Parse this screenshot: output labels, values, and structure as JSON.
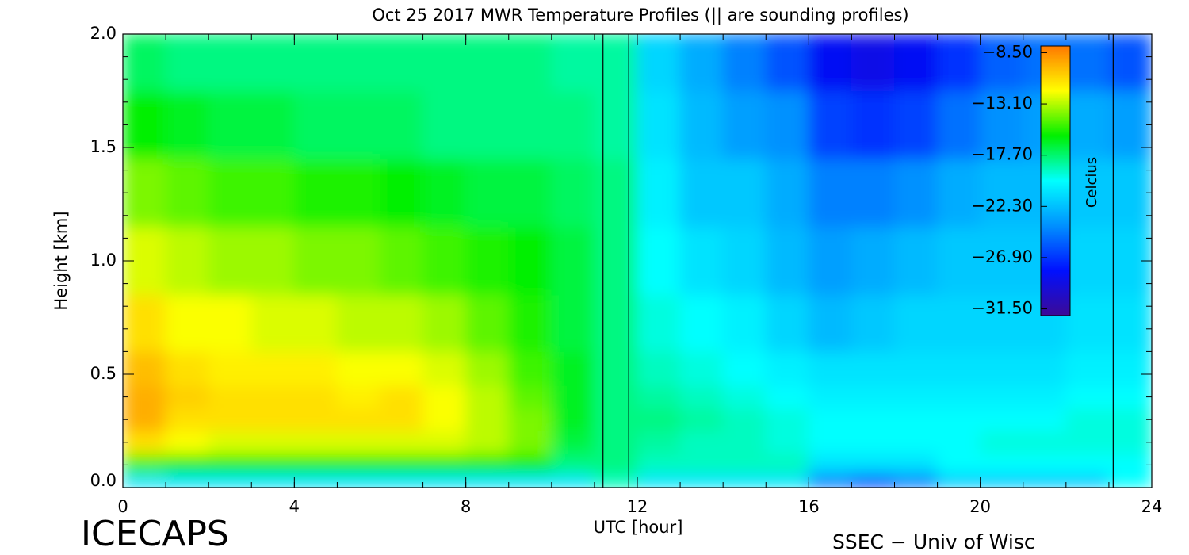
{
  "chart_data": {
    "type": "heatmap",
    "title": "Oct 25 2017 MWR Temperature Profiles (|| are sounding profiles)",
    "x_label": "UTC [hour]",
    "y_label": "Height [km]",
    "colorbar_label": "Celcius",
    "footer_left": "ICECAPS",
    "footer_right": "SSEC − Univ of Wisc",
    "xlim": [
      0,
      24
    ],
    "xticks": [
      0,
      4,
      8,
      12,
      16,
      20,
      24
    ],
    "xminor": 1,
    "ylim": [
      0,
      2
    ],
    "yticks": [
      {
        "value": 0,
        "label": "0.0"
      },
      {
        "value": 0.5,
        "label": "0.5"
      },
      {
        "value": 1,
        "label": "1.0"
      },
      {
        "value": 1.5,
        "label": "1.5"
      },
      {
        "value": 2,
        "label": "2.0"
      }
    ],
    "yminor": 0.1,
    "zlim": [
      -32.1,
      -7.9
    ],
    "zticks": [
      {
        "value": -8.5,
        "label": "−8.50"
      },
      {
        "value": -13.1,
        "label": "−13.10"
      },
      {
        "value": -17.7,
        "label": "−17.70"
      },
      {
        "value": -22.3,
        "label": "−22.30"
      },
      {
        "value": -26.9,
        "label": "−26.90"
      },
      {
        "value": -31.5,
        "label": "−31.50"
      }
    ],
    "colormap": [
      "#3c0a96",
      "#0010ff",
      "#0090ff",
      "#00ffff",
      "#00f000",
      "#ffff00",
      "#ff7800"
    ],
    "sounding_times": [
      11.2,
      11.8,
      23.1
    ],
    "x": [
      0.5,
      1.5,
      2.5,
      3.5,
      4.5,
      5.5,
      6.5,
      7.5,
      8.5,
      9.5,
      10.5,
      11.5,
      12.5,
      13.5,
      14.5,
      15.5,
      16.5,
      17.5,
      18.5,
      19.5,
      20.5,
      21.5,
      22.5,
      23.5
    ],
    "y": [
      0.02,
      0.1,
      0.2,
      0.3,
      0.4,
      0.5,
      0.7,
      1.0,
      1.3,
      1.6,
      1.9
    ],
    "z": [
      [
        -21,
        -21,
        -21,
        -21,
        -21,
        -21,
        -21,
        -21,
        -21,
        -21,
        -21,
        -19,
        -21,
        -21,
        -21,
        -21,
        -25,
        -27,
        -25,
        -22,
        -22,
        -22,
        -22,
        -20
      ],
      [
        -15,
        -16,
        -16,
        -16,
        -16,
        -16,
        -16,
        -16,
        -16,
        -16,
        -18,
        -18,
        -19,
        -19,
        -19,
        -19,
        -21,
        -21,
        -21,
        -20,
        -20,
        -20,
        -20,
        -20
      ],
      [
        -11,
        -12,
        -12.5,
        -12.5,
        -12.5,
        -12.5,
        -12.5,
        -12.5,
        -13,
        -14,
        -17,
        -18,
        -18.5,
        -19,
        -19,
        -19.5,
        -20,
        -20,
        -20,
        -20,
        -19.5,
        -19.5,
        -19.5,
        -19.5
      ],
      [
        -9.5,
        -11,
        -11,
        -11,
        -11,
        -11,
        -11,
        -12,
        -13,
        -14,
        -16.5,
        -18,
        -18,
        -18.5,
        -19,
        -19.5,
        -20,
        -20,
        -20,
        -20,
        -20,
        -20,
        -19.5,
        -19.5
      ],
      [
        -9.5,
        -10.5,
        -11,
        -11,
        -11,
        -11.5,
        -11,
        -12,
        -13,
        -14.5,
        -16.5,
        -18,
        -18.5,
        -19,
        -19.5,
        -20,
        -20.5,
        -20.5,
        -20.5,
        -20.5,
        -20.5,
        -20.5,
        -20,
        -20
      ],
      [
        -10,
        -11,
        -11.5,
        -11.5,
        -11.5,
        -12,
        -12,
        -12.5,
        -13.5,
        -15,
        -16.5,
        -18,
        -19,
        -19.5,
        -20,
        -20.5,
        -21,
        -21,
        -21,
        -21,
        -21,
        -21,
        -20.5,
        -20.5
      ],
      [
        -11,
        -12,
        -12,
        -12.5,
        -12.5,
        -13,
        -13,
        -13.5,
        -14.5,
        -15.5,
        -17,
        -18,
        -19.5,
        -20,
        -20.5,
        -21.5,
        -22.5,
        -22,
        -21.5,
        -21.5,
        -21.5,
        -21.5,
        -21,
        -21
      ],
      [
        -12.5,
        -13,
        -13.5,
        -13.5,
        -14,
        -14,
        -14.5,
        -15,
        -15.5,
        -16,
        -17,
        -18,
        -20,
        -21,
        -21.5,
        -22.5,
        -23.5,
        -23,
        -22.5,
        -22,
        -22,
        -22,
        -21.5,
        -21.5
      ],
      [
        -14,
        -14.5,
        -15,
        -15,
        -15.5,
        -15.5,
        -16,
        -16.5,
        -17,
        -17,
        -17.5,
        -18,
        -20.5,
        -22,
        -22,
        -23,
        -24.5,
        -24.5,
        -24,
        -23,
        -22.5,
        -22.5,
        -22,
        -22
      ],
      [
        -16,
        -16.5,
        -17,
        -17,
        -17.5,
        -17.5,
        -17.5,
        -18,
        -18,
        -18,
        -18,
        -18.5,
        -21,
        -22.5,
        -23.5,
        -24,
        -26.5,
        -27,
        -26.5,
        -25,
        -24,
        -23.5,
        -23,
        -23.5
      ],
      [
        -17.5,
        -18,
        -18,
        -18,
        -18,
        -18,
        -18,
        -18,
        -18,
        -18,
        -18.5,
        -18.5,
        -21.5,
        -23,
        -24.5,
        -26,
        -28.5,
        -29,
        -28.5,
        -27,
        -25.5,
        -25,
        -25,
        -26
      ]
    ]
  }
}
